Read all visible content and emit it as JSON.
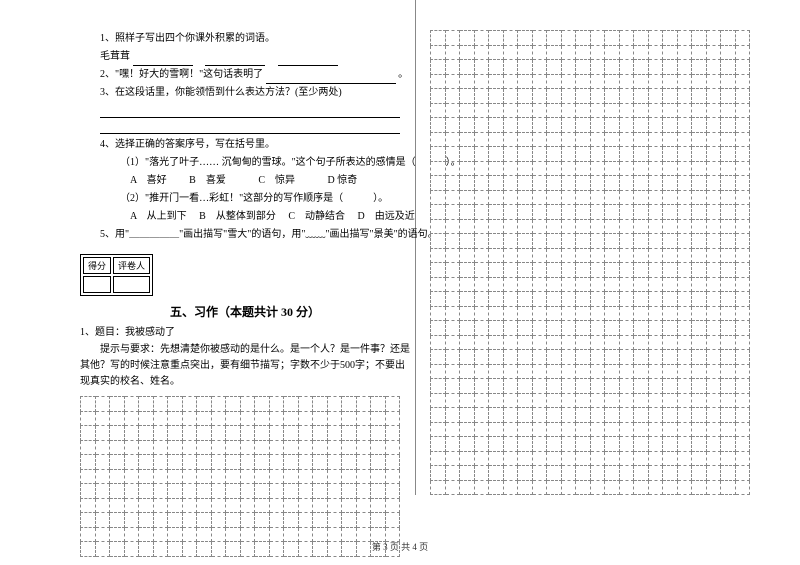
{
  "q1": {
    "text": "1、照样子写出四个你课外积累的词语。",
    "example": "毛茸茸"
  },
  "q2": {
    "text": "2、\"嘿！好大的雪啊！\"这句话表明了",
    "tail": "。"
  },
  "q3": {
    "text": "3、在这段话里，你能领悟到什么表达方法？(至少两处)"
  },
  "q4": {
    "text": "4、选择正确的答案序号，写在括号里。",
    "sub1": "（1）\"落光了叶子…… 沉甸甸的雪球。\"这个句子所表达的感情是（　　　）。",
    "opts1": {
      "a": "A　喜好",
      "b": "B　喜爱",
      "c": "C　惊异",
      "d": "D 惊奇"
    },
    "sub2": "（2）\"推开门一看…彩虹！\"这部分的写作顺序是（　　　）。",
    "opts2": {
      "a": "A　从上到下",
      "b": "B　从整体到部分",
      "c": "C　动静结合",
      "d": "D　由远及近"
    }
  },
  "q5": {
    "text": "5、用\"＿＿＿＿＿\"画出描写\"雪大\"的语句，用\"﹏﹏\"画出描写\"景美\"的语句。"
  },
  "scorebox": {
    "c1": "得分",
    "c2": "评卷人"
  },
  "section5": "五、习作（本题共计 30 分）",
  "essay": {
    "title": "1、题目：我被感动了",
    "hint": "　　提示与要求：先想清楚你被感动的是什么。是一个人？是一件事？还是其他？写的时候注意重点突出，要有细节描写；字数不少于500字；不要出现真实的校名、姓名。"
  },
  "footer": "第 3 页 共 4 页",
  "grid": {
    "left_cols": 22,
    "left_rows": 11,
    "right_cols": 22,
    "right_rows": 32
  }
}
